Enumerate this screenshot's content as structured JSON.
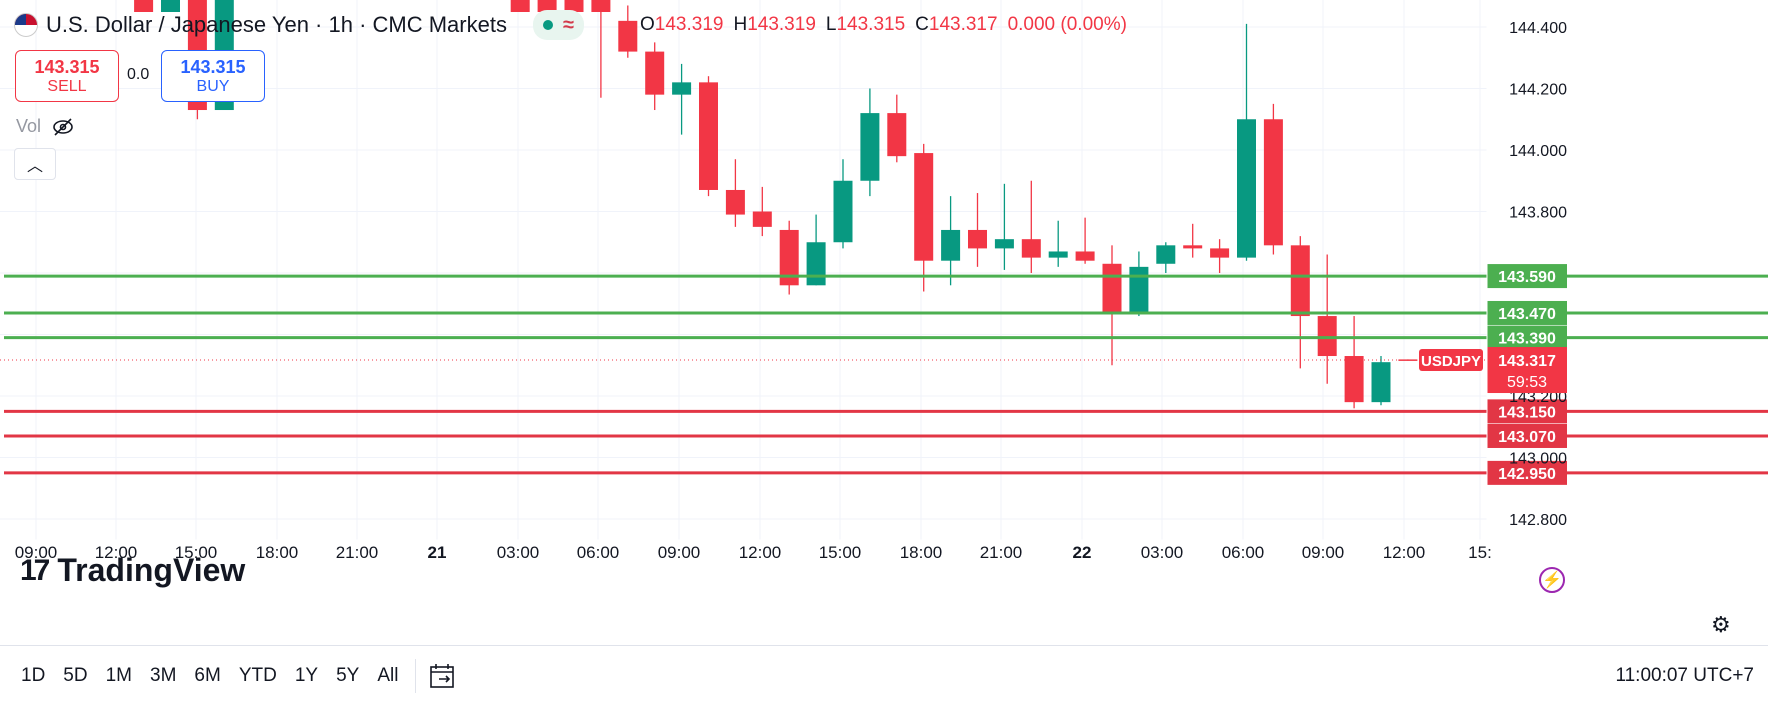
{
  "header": {
    "title": "U.S. Dollar / Japanese Yen · 1h · CMC Markets",
    "ohlc": [
      {
        "key": "O",
        "value": "143.319"
      },
      {
        "key": "H",
        "value": "143.319"
      },
      {
        "key": "L",
        "value": "143.315"
      },
      {
        "key": "C",
        "value": "143.317"
      }
    ],
    "change": "0.000 (0.00%)"
  },
  "trade": {
    "sell_price": "143.315",
    "sell_label": "SELL",
    "buy_price": "143.315",
    "buy_label": "BUY",
    "spread": "0.0"
  },
  "vol_label": "Vol",
  "logo_text": "TradingView",
  "timeframes": [
    "1D",
    "5D",
    "1M",
    "3M",
    "6M",
    "YTD",
    "1Y",
    "5Y",
    "All"
  ],
  "clock": "11:00:07 UTC+7",
  "icons": {
    "flag": "us-flag-icon",
    "vol": "eye-off-icon",
    "collapse": "chevron-up-icon",
    "flash": "lightning-icon",
    "settings": "gear-icon",
    "calendar": "calendar-goto-icon"
  },
  "colors": {
    "up": "#089981",
    "down": "#f23645",
    "support_lines": "#e23645",
    "resistance_lines": "#4caf50"
  },
  "chart_data": {
    "type": "candlestick",
    "symbol_label": "USDJPY",
    "last_price": "143.317",
    "countdown": "59:53",
    "ylim": [
      142.75,
      144.45
    ],
    "y_ticks": [
      "144.400",
      "144.200",
      "144.000",
      "143.800",
      "143.200",
      "143.000",
      "142.800"
    ],
    "x_ticks": [
      "09:00",
      "12:00",
      "15:00",
      "18:00",
      "21:00",
      "21",
      "03:00",
      "06:00",
      "09:00",
      "12:00",
      "15:00",
      "18:00",
      "21:00",
      "22",
      "03:00",
      "06:00",
      "09:00",
      "12:00",
      "15:"
    ],
    "horizontal_lines": [
      {
        "value": 143.59,
        "label": "143.590",
        "kind": "green"
      },
      {
        "value": 143.47,
        "label": "143.470",
        "kind": "green"
      },
      {
        "value": 143.39,
        "label": "143.390",
        "kind": "green"
      },
      {
        "value": 143.15,
        "label": "143.150",
        "kind": "red"
      },
      {
        "value": 143.07,
        "label": "143.070",
        "kind": "red"
      },
      {
        "value": 142.95,
        "label": "142.950",
        "kind": "red"
      }
    ],
    "candles_partial_top": [
      {
        "t": 4,
        "color": "down"
      },
      {
        "t": 5,
        "color": "up"
      },
      {
        "t": 6,
        "color": "down",
        "low": 144.1,
        "bodyLow": 144.13
      },
      {
        "t": 7,
        "color": "up",
        "bodyLow": 144.13
      },
      {
        "t": 18,
        "color": "down"
      },
      {
        "t": 19,
        "color": "down"
      },
      {
        "t": 20,
        "color": "down"
      },
      {
        "t": 21,
        "color": "down",
        "low": 144.17
      }
    ],
    "candles": [
      {
        "t": 22,
        "o": 144.42,
        "h": 144.47,
        "l": 144.3,
        "c": 144.32
      },
      {
        "t": 23,
        "o": 144.32,
        "h": 144.35,
        "l": 144.13,
        "c": 144.18
      },
      {
        "t": 24,
        "o": 144.18,
        "h": 144.28,
        "l": 144.05,
        "c": 144.22
      },
      {
        "t": 25,
        "o": 144.22,
        "h": 144.24,
        "l": 143.85,
        "c": 143.87
      },
      {
        "t": 26,
        "o": 143.87,
        "h": 143.97,
        "l": 143.75,
        "c": 143.79
      },
      {
        "t": 27,
        "o": 143.8,
        "h": 143.88,
        "l": 143.72,
        "c": 143.75
      },
      {
        "t": 28,
        "o": 143.74,
        "h": 143.77,
        "l": 143.53,
        "c": 143.56
      },
      {
        "t": 29,
        "o": 143.56,
        "h": 143.79,
        "l": 143.56,
        "c": 143.7
      },
      {
        "t": 30,
        "o": 143.7,
        "h": 143.97,
        "l": 143.68,
        "c": 143.9
      },
      {
        "t": 31,
        "o": 143.9,
        "h": 144.2,
        "l": 143.85,
        "c": 144.12
      },
      {
        "t": 32,
        "o": 144.12,
        "h": 144.18,
        "l": 143.96,
        "c": 143.98
      },
      {
        "t": 33,
        "o": 143.99,
        "h": 144.02,
        "l": 143.54,
        "c": 143.64
      },
      {
        "t": 34,
        "o": 143.64,
        "h": 143.85,
        "l": 143.56,
        "c": 143.74
      },
      {
        "t": 35,
        "o": 143.74,
        "h": 143.86,
        "l": 143.62,
        "c": 143.68
      },
      {
        "t": 36,
        "o": 143.68,
        "h": 143.89,
        "l": 143.61,
        "c": 143.71
      },
      {
        "t": 37,
        "o": 143.71,
        "h": 143.9,
        "l": 143.6,
        "c": 143.65
      },
      {
        "t": 38,
        "o": 143.65,
        "h": 143.77,
        "l": 143.62,
        "c": 143.67
      },
      {
        "t": 39,
        "o": 143.67,
        "h": 143.78,
        "l": 143.63,
        "c": 143.64
      },
      {
        "t": 40,
        "o": 143.63,
        "h": 143.69,
        "l": 143.3,
        "c": 143.47
      },
      {
        "t": 41,
        "o": 143.47,
        "h": 143.67,
        "l": 143.46,
        "c": 143.62
      },
      {
        "t": 42,
        "o": 143.63,
        "h": 143.7,
        "l": 143.6,
        "c": 143.69
      },
      {
        "t": 43,
        "o": 143.69,
        "h": 143.76,
        "l": 143.65,
        "c": 143.68
      },
      {
        "t": 44,
        "o": 143.68,
        "h": 143.71,
        "l": 143.6,
        "c": 143.65
      },
      {
        "t": 45,
        "o": 143.65,
        "h": 144.41,
        "l": 143.64,
        "c": 144.1
      },
      {
        "t": 46,
        "o": 144.1,
        "h": 144.15,
        "l": 143.66,
        "c": 143.69
      },
      {
        "t": 47,
        "o": 143.69,
        "h": 143.72,
        "l": 143.29,
        "c": 143.46
      },
      {
        "t": 48,
        "o": 143.46,
        "h": 143.66,
        "l": 143.24,
        "c": 143.33
      },
      {
        "t": 49,
        "o": 143.33,
        "h": 143.46,
        "l": 143.16,
        "c": 143.18
      },
      {
        "t": 50,
        "o": 143.18,
        "h": 143.33,
        "l": 143.17,
        "c": 143.31
      },
      {
        "t": 51,
        "o": 143.319,
        "h": 143.319,
        "l": 143.315,
        "c": 143.317
      }
    ]
  }
}
